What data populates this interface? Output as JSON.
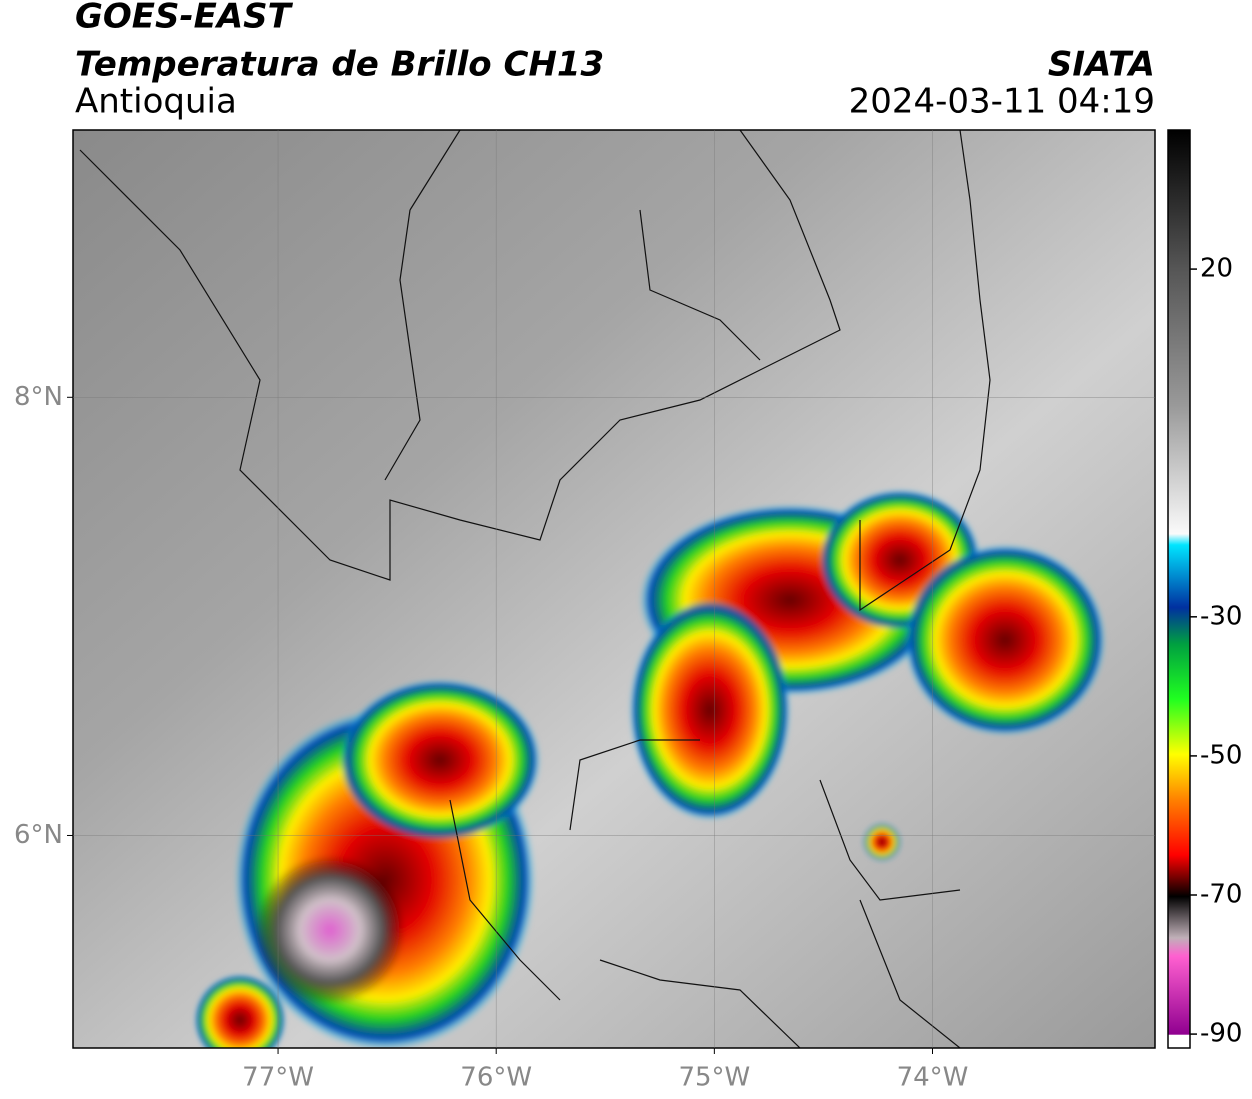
{
  "header": {
    "line1": "GOES-EAST",
    "line2": "Temperatura de Brillo CH13",
    "region": "Antioquia",
    "org": "SIATA",
    "datetime": "2024-03-11 04:19"
  },
  "map": {
    "lonlim": [
      -77.94,
      -72.98
    ],
    "latlim": [
      5.03,
      9.22
    ],
    "lon_ticks": [
      {
        "value": -77,
        "label": "77°W"
      },
      {
        "value": -76,
        "label": "76°W"
      },
      {
        "value": -75,
        "label": "75°W"
      },
      {
        "value": -74,
        "label": "74°W"
      }
    ],
    "lat_ticks": [
      {
        "value": 8,
        "label": "8°N"
      },
      {
        "value": 6,
        "label": "6°N"
      }
    ]
  },
  "colorbar": {
    "range": [
      -92,
      40
    ],
    "ticks": [
      20,
      -30,
      -50,
      -70,
      -90
    ]
  }
}
